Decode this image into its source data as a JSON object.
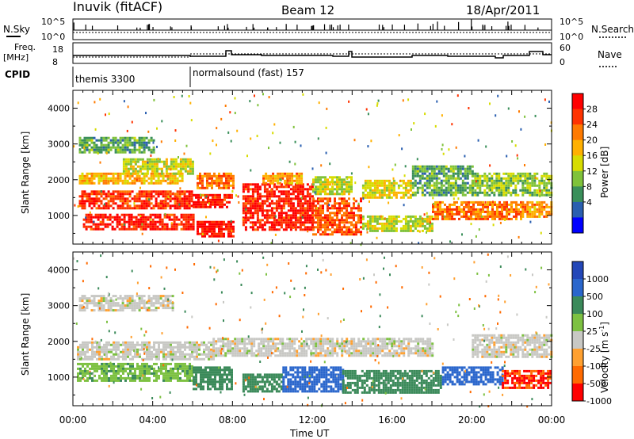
{
  "header": {
    "station": "Inuvik (fitACF)",
    "beam": "Beam 12",
    "date": "18/Apr/2011"
  },
  "status_panels": {
    "nsky_label": "N.Sky",
    "nsky_ticks": [
      "10^5",
      "10^0"
    ],
    "nsearch_label": "N.Search",
    "nsearch_ticks": [
      "10^5",
      "10^0"
    ],
    "freq_label_line1": "Freq.",
    "freq_label_line2": "[MHz]",
    "freq_ticks": [
      "18",
      "8"
    ],
    "nave_label": "Nave",
    "nave_ticks": [
      "60",
      "0"
    ],
    "cpid_label": "CPID",
    "cpid_segments": [
      {
        "name": "themis 3300",
        "start_hour": 0,
        "end_hour": 6
      },
      {
        "name": "normalsound (fast) 157",
        "start_hour": 6,
        "end_hour": 24
      }
    ]
  },
  "power_panel": {
    "ylabel": "Slant Range [km]",
    "yticks": [
      "4000",
      "3000",
      "2000",
      "1000"
    ],
    "colorbar_label": "Power [dB]",
    "colorbar_ticks": [
      "28",
      "24",
      "20",
      "16",
      "12",
      "8",
      "4"
    ],
    "colorbar_colors": [
      "#ff0000",
      "#ff3300",
      "#ff7a00",
      "#ffb000",
      "#d7dc00",
      "#7fc23a",
      "#3a8f5a",
      "#2a5fb0",
      "#0000ff"
    ]
  },
  "velocity_panel": {
    "ylabel": "Slant Range [km]",
    "yticks": [
      "4000",
      "3000",
      "2000",
      "1000"
    ],
    "colorbar_label": "Velocity [m s",
    "colorbar_label_sup": "-1",
    "colorbar_label_end": "]",
    "colorbar_ticks": [
      "1000",
      "500",
      "100",
      "25",
      "-25",
      "-100",
      "-500",
      "-1000"
    ],
    "colorbar_colors": [
      "#2347b8",
      "#2a66cc",
      "#3b8a5a",
      "#7dc142",
      "#c8c8c4",
      "#ffa030",
      "#ff6a00",
      "#ff0000"
    ]
  },
  "x_axis": {
    "label": "Time UT",
    "tick_labels": [
      "00:00",
      "04:00",
      "08:00",
      "12:00",
      "16:00",
      "20:00",
      "00:00"
    ]
  },
  "chart_data": {
    "type": "heatmap",
    "title": "Inuvik (fitACF)",
    "subtitle": "Beam 12",
    "date": "18/Apr/2011",
    "xlabel": "Time UT",
    "ylabel": "Slant Range [km]",
    "xlim": [
      0,
      24
    ],
    "ylim": [
      200,
      4500
    ],
    "power_scale_db": [
      0,
      30
    ],
    "velocity_scale_ms": [
      -1000,
      1000
    ],
    "power_regions": [
      {
        "t0": 0.3,
        "t1": 6.0,
        "r0": 1200,
        "r1": 1700,
        "dB": 26
      },
      {
        "t0": 0.5,
        "t1": 6.0,
        "r0": 650,
        "r1": 1050,
        "dB": 27
      },
      {
        "t0": 0.3,
        "t1": 5.5,
        "r0": 1900,
        "r1": 2200,
        "dB": 18
      },
      {
        "t0": 2.5,
        "t1": 6.0,
        "r0": 2200,
        "r1": 2600,
        "dB": 14
      },
      {
        "t0": 0.3,
        "t1": 4.0,
        "r0": 2800,
        "r1": 3200,
        "dB": 10
      },
      {
        "t0": 6.0,
        "t1": 8.0,
        "r0": 1250,
        "r1": 1600,
        "dB": 27
      },
      {
        "t0": 6.2,
        "t1": 8.0,
        "r0": 400,
        "r1": 850,
        "dB": 28
      },
      {
        "t0": 6.2,
        "t1": 8.0,
        "r0": 1800,
        "r1": 2200,
        "dB": 22
      },
      {
        "t0": 8.5,
        "t1": 12.0,
        "r0": 600,
        "r1": 1900,
        "dB": 27
      },
      {
        "t0": 9.5,
        "t1": 11.5,
        "r0": 1900,
        "r1": 2200,
        "dB": 20
      },
      {
        "t0": 12.0,
        "t1": 14.5,
        "r0": 500,
        "r1": 1500,
        "dB": 24
      },
      {
        "t0": 12.0,
        "t1": 14.0,
        "r0": 1600,
        "r1": 2100,
        "dB": 14
      },
      {
        "t0": 14.5,
        "t1": 17.0,
        "r0": 1500,
        "r1": 2000,
        "dB": 16
      },
      {
        "t0": 14.5,
        "t1": 18.0,
        "r0": 600,
        "r1": 1000,
        "dB": 14
      },
      {
        "t0": 17.0,
        "t1": 20.0,
        "r0": 1600,
        "r1": 2400,
        "dB": 10
      },
      {
        "t0": 18.0,
        "t1": 22.5,
        "r0": 900,
        "r1": 1400,
        "dB": 22
      },
      {
        "t0": 20.0,
        "t1": 24.0,
        "r0": 1600,
        "r1": 2200,
        "dB": 12
      },
      {
        "t0": 22.5,
        "t1": 24.0,
        "r0": 1000,
        "r1": 1400,
        "dB": 20
      }
    ],
    "velocity_regions": [
      {
        "t0": 0.2,
        "t1": 7.0,
        "r0": 1500,
        "r1": 2000,
        "v": 0
      },
      {
        "t0": 0.2,
        "t1": 6.0,
        "r0": 900,
        "r1": 1400,
        "v": 80
      },
      {
        "t0": 0.3,
        "t1": 5.0,
        "r0": 2900,
        "r1": 3300,
        "v": 0
      },
      {
        "t0": 6.0,
        "t1": 8.0,
        "r0": 700,
        "r1": 1300,
        "v": 200
      },
      {
        "t0": 7.0,
        "t1": 18.0,
        "r0": 1600,
        "r1": 2100,
        "v": 0
      },
      {
        "t0": 8.5,
        "t1": 10.5,
        "r0": 600,
        "r1": 1100,
        "v": 300
      },
      {
        "t0": 10.5,
        "t1": 13.5,
        "r0": 600,
        "r1": 1300,
        "v": 700
      },
      {
        "t0": 13.5,
        "t1": 18.5,
        "r0": 600,
        "r1": 1200,
        "v": 300
      },
      {
        "t0": 18.5,
        "t1": 21.5,
        "r0": 800,
        "r1": 1300,
        "v": 700
      },
      {
        "t0": 20.0,
        "t1": 24.0,
        "r0": 1600,
        "r1": 2200,
        "v": 0
      },
      {
        "t0": 21.5,
        "t1": 24.0,
        "r0": 700,
        "r1": 1200,
        "v": -500
      }
    ]
  }
}
